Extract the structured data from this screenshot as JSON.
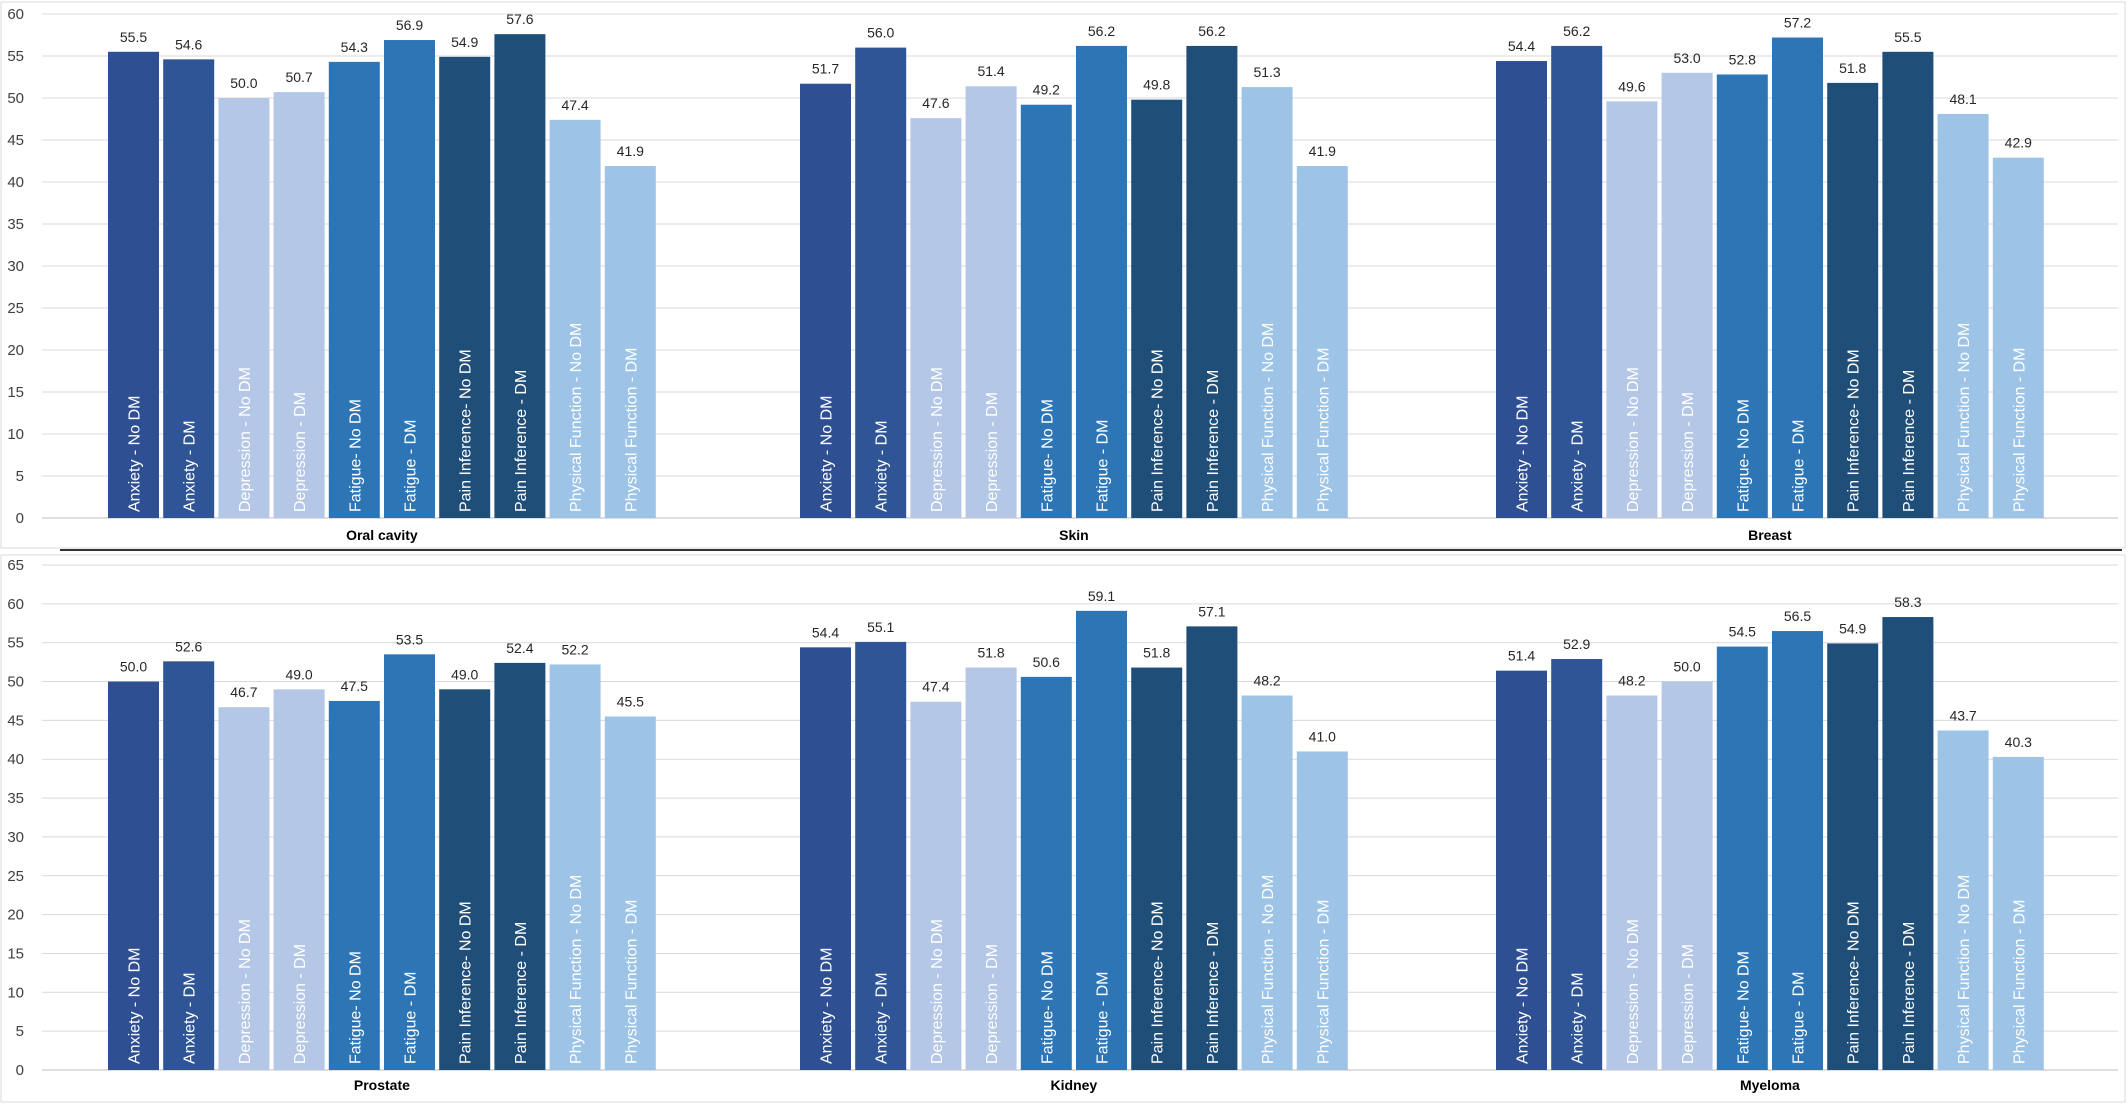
{
  "chart_data": [
    {
      "type": "bar",
      "ylim": [
        0,
        60
      ],
      "yticks": [
        0,
        5,
        10,
        15,
        20,
        25,
        30,
        35,
        40,
        45,
        50,
        55,
        60
      ],
      "grid": true,
      "series_labels": [
        "Anxiety - No DM",
        "Anxiety - DM",
        "Depression - No DM",
        "Depression - DM",
        "Fatigue- No DM",
        "Fatigue - DM",
        "Pain Inference- No DM",
        "Pain Inference - DM",
        "Physical Function - No DM",
        "Physical Function - DM"
      ],
      "colors": [
        "#2F4F93",
        "#2F5597",
        "#B4C7E7",
        "#B4C7E7",
        "#2E75B6",
        "#2E75B6",
        "#1F4E79",
        "#1F4E79",
        "#9DC3E6",
        "#9DC3E6"
      ],
      "groups": [
        {
          "name": "Oral cavity",
          "values": [
            55.5,
            54.6,
            50.0,
            50.7,
            54.3,
            56.9,
            54.9,
            57.6,
            47.4,
            41.9
          ],
          "value_labels": [
            "55.5",
            "54.6",
            "50.0",
            "50.7",
            "54.3",
            "56.9",
            "54.9",
            "57.6",
            "47.4",
            "41.9"
          ]
        },
        {
          "name": "Skin",
          "values": [
            51.7,
            56.0,
            47.6,
            51.4,
            49.2,
            56.2,
            49.8,
            56.2,
            51.3,
            41.9
          ],
          "value_labels": [
            "51.7",
            "56.0",
            "47.6",
            "51.4",
            "49.2",
            "56.2",
            "49.8",
            "56.2",
            "51.3",
            "41.9"
          ]
        },
        {
          "name": "Breast",
          "values": [
            54.4,
            56.2,
            49.6,
            53.0,
            52.8,
            57.2,
            51.8,
            55.5,
            48.1,
            42.9
          ],
          "value_labels": [
            "54.4",
            "56.2",
            "49.6",
            "53.0",
            "52.8",
            "57.2",
            "51.8",
            "55.5",
            "48.1",
            "42.9"
          ]
        }
      ]
    },
    {
      "type": "bar",
      "ylim": [
        0,
        65
      ],
      "yticks": [
        0,
        5,
        10,
        15,
        20,
        25,
        30,
        35,
        40,
        45,
        50,
        55,
        60,
        65
      ],
      "grid": true,
      "series_labels": [
        "Anxiety - No DM",
        "Anxiety - DM",
        "Depression - No DM",
        "Depression - DM",
        "Fatigue- No DM",
        "Fatigue - DM",
        "Pain Inference- No DM",
        "Pain Inference - DM",
        "Physical Function - No DM",
        "Physical Function - DM"
      ],
      "colors": [
        "#2F4F93",
        "#2F5597",
        "#B4C7E7",
        "#B4C7E7",
        "#2E75B6",
        "#2E75B6",
        "#1F4E79",
        "#1F4E79",
        "#9DC3E6",
        "#9DC3E6"
      ],
      "groups": [
        {
          "name": "Prostate",
          "values": [
            50.0,
            52.6,
            46.7,
            49.0,
            47.5,
            53.5,
            49.0,
            52.4,
            52.2,
            45.5
          ],
          "value_labels": [
            "50.0",
            "52.6",
            "46.7",
            "49.0",
            "47.5",
            "53.5",
            "49.0",
            "52.4",
            "52.2",
            "45.5"
          ]
        },
        {
          "name": "Kidney",
          "values": [
            54.4,
            55.1,
            47.4,
            51.8,
            50.6,
            59.1,
            51.8,
            57.1,
            48.2,
            41.0
          ],
          "value_labels": [
            "54.4",
            "55.1",
            "47.4",
            "51.8",
            "50.6",
            "59.1",
            "51.8",
            "57.1",
            "48.2",
            "41.0"
          ]
        },
        {
          "name": "Myeloma",
          "values": [
            51.4,
            52.9,
            48.2,
            50.0,
            54.5,
            56.5,
            54.9,
            58.3,
            43.7,
            40.3
          ],
          "value_labels": [
            "51.4",
            "52.9",
            "48.2",
            "50.0",
            "54.5",
            "56.5",
            "54.9",
            "58.3",
            "43.7",
            "40.3"
          ]
        }
      ]
    }
  ]
}
